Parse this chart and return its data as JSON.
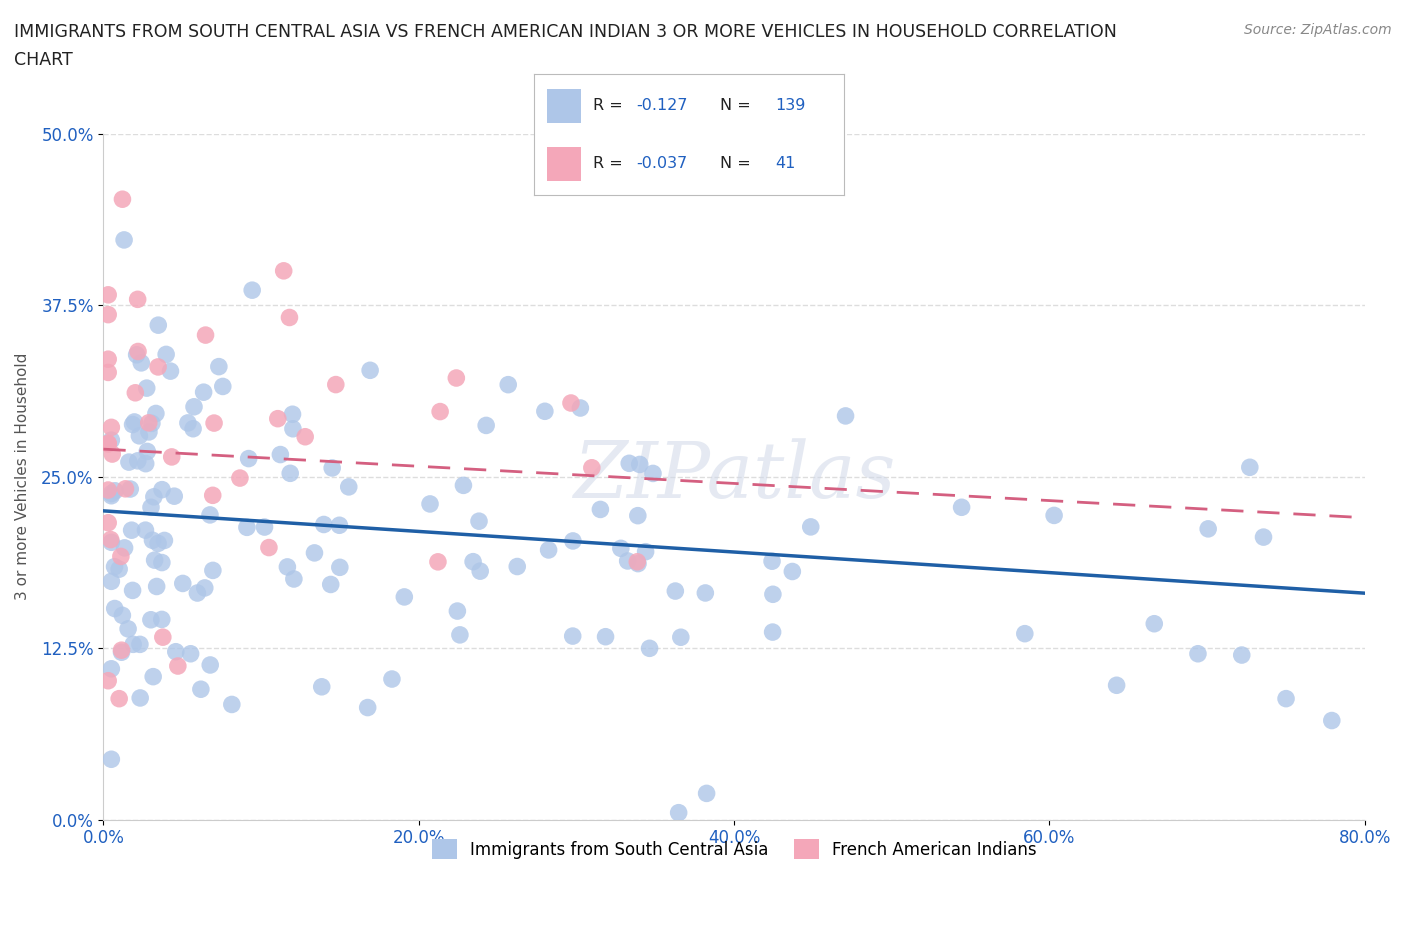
{
  "title_line1": "IMMIGRANTS FROM SOUTH CENTRAL ASIA VS FRENCH AMERICAN INDIAN 3 OR MORE VEHICLES IN HOUSEHOLD CORRELATION",
  "title_line2": "CHART",
  "source": "Source: ZipAtlas.com",
  "ylabel": "3 or more Vehicles in Household",
  "xlim": [
    0.0,
    0.8
  ],
  "ylim": [
    0.0,
    0.5
  ],
  "xticks": [
    0.0,
    0.2,
    0.4,
    0.6,
    0.8
  ],
  "xticklabels": [
    "0.0%",
    "20.0%",
    "40.0%",
    "60.0%",
    "80.0%"
  ],
  "yticks": [
    0.0,
    0.125,
    0.25,
    0.375,
    0.5
  ],
  "yticklabels": [
    "0.0%",
    "12.5%",
    "25.0%",
    "37.5%",
    "50.0%"
  ],
  "blue_R": -0.127,
  "blue_N": 139,
  "pink_R": -0.037,
  "pink_N": 41,
  "blue_color": "#aec6e8",
  "pink_color": "#f4a7b9",
  "blue_line_color": "#1f5fa6",
  "pink_line_color": "#d45f80",
  "legend_label_blue": "Immigrants from South Central Asia",
  "legend_label_pink": "French American Indians",
  "watermark": "ZIPatlas",
  "background_color": "#ffffff",
  "grid_color": "#dddddd",
  "title_color": "#222222",
  "axis_label_color": "#555555",
  "tick_color": "#2060c0"
}
